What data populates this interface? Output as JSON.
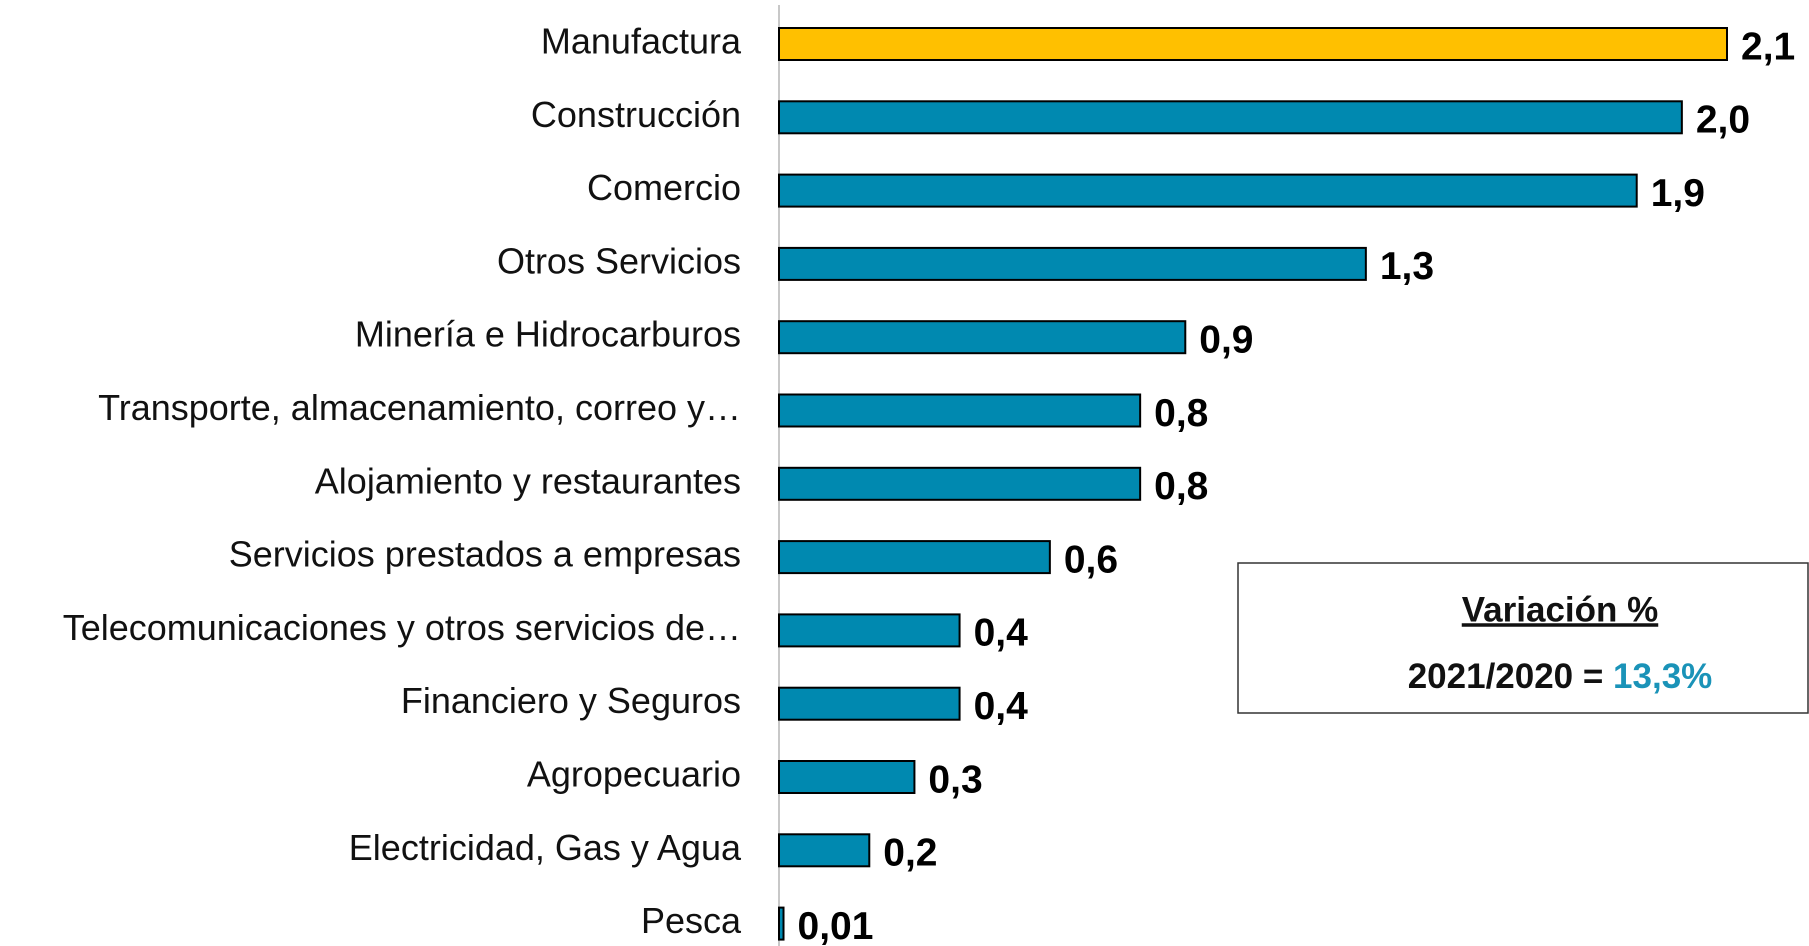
{
  "chart_data": {
    "type": "bar",
    "orientation": "horizontal",
    "categories": [
      "Manufactura",
      "Construcción",
      "Comercio",
      "Otros Servicios",
      "Minería e Hidrocarburos",
      "Transporte, almacenamiento, correo y…",
      "Alojamiento y restaurantes",
      "Servicios prestados a empresas",
      "Telecomunicaciones y otros servicios de…",
      "Financiero y Seguros",
      "Agropecuario",
      "Electricidad, Gas y Agua",
      "Pesca"
    ],
    "values": [
      2.1,
      2.0,
      1.9,
      1.3,
      0.9,
      0.8,
      0.8,
      0.6,
      0.4,
      0.4,
      0.3,
      0.2,
      0.01
    ],
    "value_labels": [
      "2,1",
      "2,0",
      "1,9",
      "1,3",
      "0,9",
      "0,8",
      "0,8",
      "0,6",
      "0,4",
      "0,4",
      "0,3",
      "0,2",
      "0,01"
    ],
    "colors": [
      "#FFC000",
      "#0089B0",
      "#0089B0",
      "#0089B0",
      "#0089B0",
      "#0089B0",
      "#0089B0",
      "#0089B0",
      "#0089B0",
      "#0089B0",
      "#0089B0",
      "#0089B0",
      "#0089B0"
    ],
    "annotation": {
      "title": "Variación %",
      "text": "2021/2020 = ",
      "highlight": "13,3%",
      "highlight_color": "#1A93B8"
    }
  }
}
